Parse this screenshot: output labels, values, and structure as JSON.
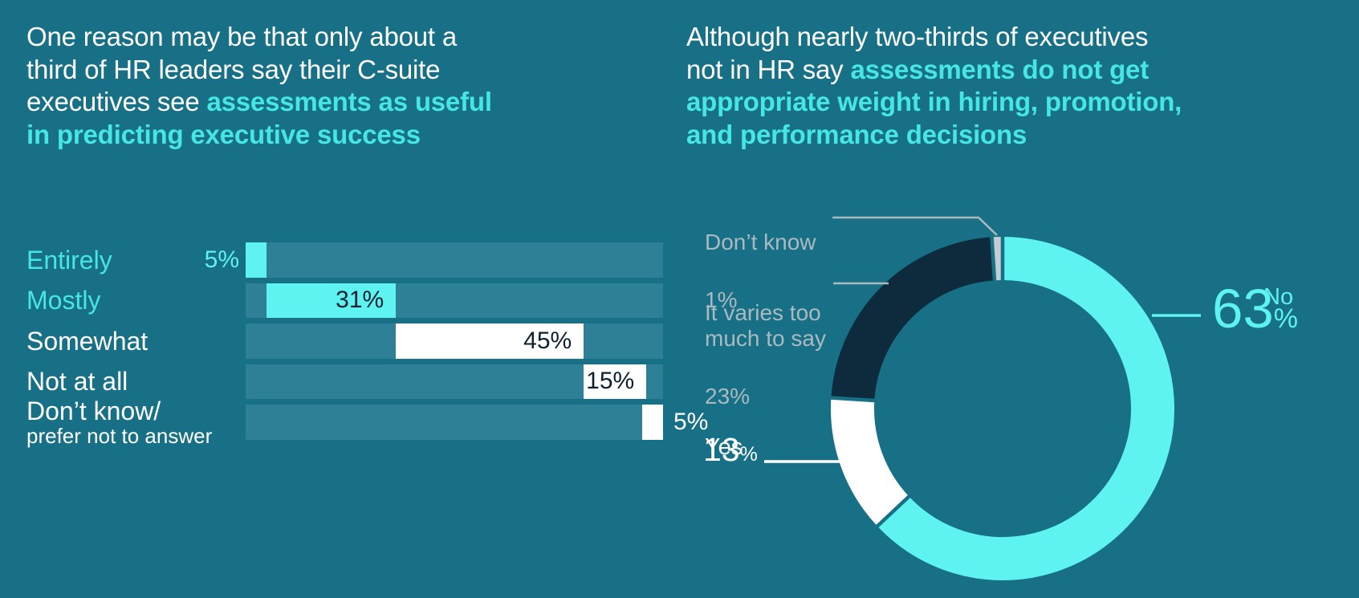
{
  "colors": {
    "background": "#177086",
    "bar_track": "#2e8096",
    "accent_cyan": "#5ef3f0",
    "headline_cyan": "#46e6e3",
    "navy": "#0e2b3e",
    "gray_label": "#abb9c0",
    "gray_slice": "#c4cdd2",
    "value_dark": "#0c2030",
    "white": "#ffffff"
  },
  "left_panel": {
    "headline_plain": "One reason may be that only about a\nthird of HR leaders say their C-suite\nexecutives see ",
    "headline_highlight": "assessments as useful\nin predicting executive success"
  },
  "right_panel": {
    "headline_plain": "Although nearly two-thirds of executives\nnot in HR say ",
    "headline_highlight": "assessments do not get\nappropriate weight in hiring, promotion,\nand performance decisions",
    "callouts": {
      "dont_know": {
        "label": "Don’t know",
        "value": "1%"
      },
      "varies": {
        "label": "It varies too\nmuch to say",
        "value": "23%"
      },
      "yes": {
        "label": "Yes",
        "number": "13",
        "percent_sign": "%"
      },
      "no": {
        "label": "No",
        "number": "63",
        "percent_sign": "%"
      }
    }
  },
  "chart_data": [
    {
      "type": "bar",
      "orientation": "horizontal",
      "layout": "waterfall-cascade-left-to-right",
      "title": "One reason may be that only about a third of HR leaders say their C-suite executives see assessments as useful in predicting executive success",
      "categories": [
        "Entirely",
        "Mostly",
        "Somewhat",
        "Not at all",
        "Don’t know/\nprefer not to answer"
      ],
      "values": [
        5,
        31,
        45,
        15,
        5
      ],
      "value_labels": [
        "5%",
        "31%",
        "45%",
        "15%",
        "5%"
      ],
      "stack_order_left_to_right": [
        "Don’t know/prefer not to answer",
        "Not at all",
        "Somewhat",
        "Mostly",
        "Entirely"
      ],
      "xlim": [
        0,
        100
      ],
      "bar_styles": [
        {
          "fill": "accent_cyan",
          "category_color": "headline_cyan",
          "value_pos": "outside-left",
          "value_color": "accent_cyan"
        },
        {
          "fill": "accent_cyan",
          "category_color": "headline_cyan",
          "value_pos": "inside-right",
          "value_color": "value_dark"
        },
        {
          "fill": "white",
          "category_color": "white",
          "value_pos": "inside-right",
          "value_color": "value_dark"
        },
        {
          "fill": "white",
          "category_color": "white",
          "value_pos": "inside-right",
          "value_color": "value_dark"
        },
        {
          "fill": "white",
          "category_color": "white",
          "value_pos": "outside-right",
          "value_color": "white"
        }
      ]
    },
    {
      "type": "donut",
      "title": "Although nearly two-thirds of executives not in HR say assessments do not get appropriate weight in hiring, promotion, and performance decisions",
      "labels": [
        "No",
        "Yes",
        "It varies too much to say",
        "Don’t know"
      ],
      "values": [
        63,
        13,
        23,
        1
      ],
      "slice_colors": [
        "accent_cyan",
        "white",
        "navy",
        "gray_slice"
      ],
      "start_angle_deg": 0,
      "direction": "clockwise",
      "legend_position": "callouts"
    }
  ]
}
